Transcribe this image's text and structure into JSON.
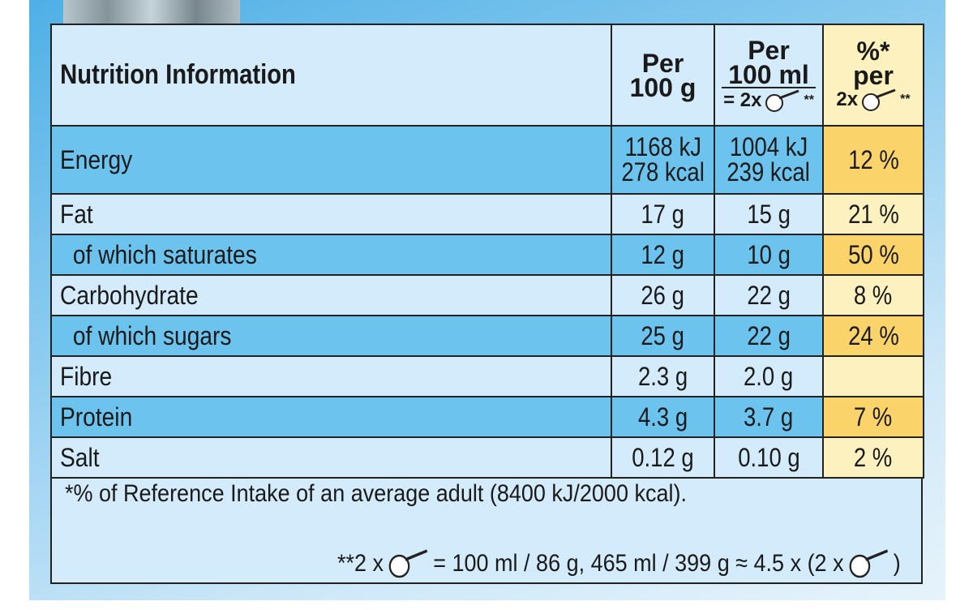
{
  "table": {
    "title": "Nutrition Information",
    "columns": {
      "per_100g": [
        "Per",
        "100 g"
      ],
      "per_100ml": [
        "Per",
        "100 ml",
        "= 2x",
        "**"
      ],
      "pct": [
        "%*",
        "per",
        "2x",
        "**"
      ]
    },
    "rows": [
      {
        "label": "Energy",
        "per_100g": [
          "1168 kJ",
          "278 kcal"
        ],
        "per_100ml": [
          "1004 kJ",
          "239 kcal"
        ],
        "pct": "12 %"
      },
      {
        "label": "Fat",
        "per_100g": "17 g",
        "per_100ml": "15 g",
        "pct": "21 %"
      },
      {
        "label": "of which saturates",
        "per_100g": "12 g",
        "per_100ml": "10 g",
        "pct": "50 %"
      },
      {
        "label": "Carbohydrate",
        "per_100g": "26 g",
        "per_100ml": "22 g",
        "pct": "8 %"
      },
      {
        "label": "of which sugars",
        "per_100g": "25 g",
        "per_100ml": "22 g",
        "pct": "24 %"
      },
      {
        "label": "Fibre",
        "per_100g": "2.3 g",
        "per_100ml": "2.0 g",
        "pct": ""
      },
      {
        "label": "Protein",
        "per_100g": "4.3 g",
        "per_100ml": "3.7 g",
        "pct": "7 %"
      },
      {
        "label": "Salt",
        "per_100g": "0.12 g",
        "per_100ml": "0.10 g",
        "pct": "2 %"
      }
    ]
  },
  "footnotes": {
    "reference": "*% of Reference Intake of an average adult (8400 kJ/2000 kcal).",
    "serving_prefix": "**2 x",
    "serving_mid": "= 100 ml / 86 g, 465 ml / 399 g ≈ 4.5 x (2 x",
    "serving_suffix": ")"
  },
  "icons": [
    "scoop-icon"
  ],
  "colors": {
    "dark_row": "#6cc3ee",
    "light_row": "#d3ebfa",
    "pct_dark": "#fbd36b",
    "pct_light": "#fdf2bf"
  }
}
